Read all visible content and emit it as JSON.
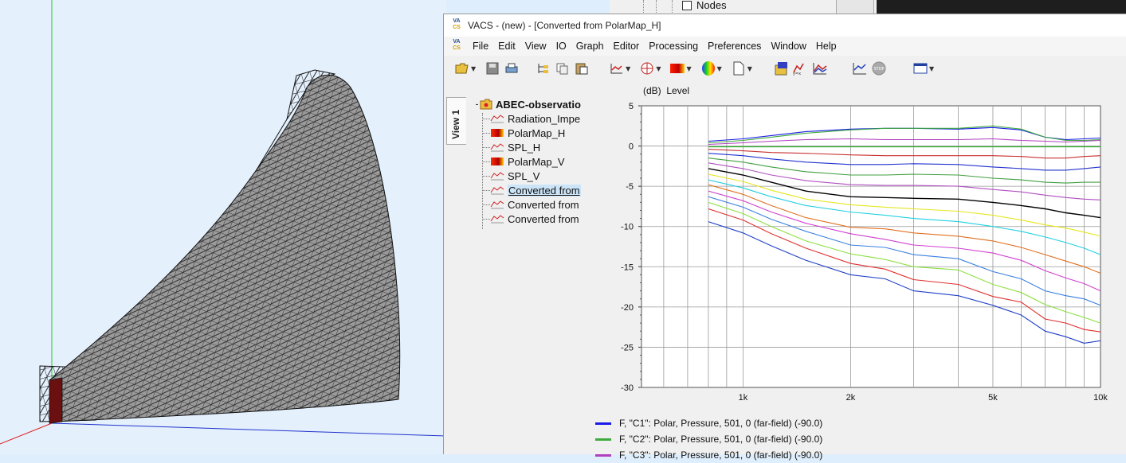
{
  "background_window": {
    "tree_label": "Nodes"
  },
  "window": {
    "title": "VACS - (new) - [Converted from PolarMap_H]",
    "logo_top": "VA",
    "logo_bottom": "CS"
  },
  "menu": [
    "File",
    "Edit",
    "View",
    "IO",
    "Graph",
    "Editor",
    "Processing",
    "Preferences",
    "Window",
    "Help"
  ],
  "toolbar_icons": [
    "open-folder-icon",
    "save-icon",
    "print-icon",
    "tree-view-icon",
    "copy-icon",
    "paste-icon",
    "line-graph-icon",
    "polar-graph-icon",
    "color-map-icon",
    "balloon-icon",
    "new-page-icon",
    "script-icon",
    "formula-icon",
    "compare-graph-icon",
    "add-graph-icon",
    "stop-icon",
    "window-layout-icon"
  ],
  "view_tab": "View 1",
  "tree": {
    "root": "ABEC-observatio",
    "items": [
      {
        "label": "Radiation_Impe",
        "icon": "line-graph-icon"
      },
      {
        "label": "PolarMap_H",
        "icon": "color-map-icon"
      },
      {
        "label": "SPL_H",
        "icon": "line-graph-icon"
      },
      {
        "label": "PolarMap_V",
        "icon": "color-map-icon"
      },
      {
        "label": "SPL_V",
        "icon": "line-graph-icon"
      },
      {
        "label": "Converted from",
        "icon": "line-graph-icon",
        "selected": true
      },
      {
        "label": "Converted from",
        "icon": "line-graph-icon"
      },
      {
        "label": "Converted from",
        "icon": "line-graph-icon"
      }
    ]
  },
  "graph": {
    "unit": "(dB)",
    "label": "Level"
  },
  "chart_data": {
    "type": "line",
    "xscale": "log",
    "xlim": [
      520,
      10000
    ],
    "ylim": [
      -30,
      5
    ],
    "ylabel": "Level",
    "yticks": [
      5,
      0,
      -5,
      -10,
      -15,
      -20,
      -25,
      -30
    ],
    "xtick_labels": [
      {
        "value": 1000,
        "label": "1k"
      },
      {
        "value": 2000,
        "label": "2k"
      },
      {
        "value": 5000,
        "label": "5k"
      },
      {
        "value": 10000,
        "label": "10k"
      }
    ],
    "x": [
      800,
      1000,
      1200,
      1500,
      2000,
      2500,
      3000,
      4000,
      5000,
      6000,
      7000,
      8000,
      9000,
      10000
    ],
    "series": [
      {
        "name": "F, \"C1\": Polar, Pressure, 501, 0 (far-field) (-90.0)",
        "color": "#1a1ae6",
        "values": [
          0.6,
          0.9,
          1.3,
          1.8,
          2.1,
          2.2,
          2.2,
          2.1,
          2.3,
          2.0,
          1.1,
          0.8,
          0.9,
          1.0
        ]
      },
      {
        "name": "F, \"C2\": Polar, Pressure, 501, 0 (far-field) (-90.0)",
        "color": "#3faa3f",
        "values": [
          0.4,
          0.7,
          1.1,
          1.6,
          2.0,
          2.2,
          2.2,
          2.2,
          2.5,
          2.1,
          1.1,
          0.7,
          0.7,
          0.8
        ]
      },
      {
        "name": "F, \"C3\": Polar, Pressure, 501, 0 (far-field) (-90.0)",
        "color": "#b040c0",
        "values": [
          0.2,
          0.4,
          0.6,
          0.8,
          0.9,
          0.8,
          0.8,
          0.8,
          0.9,
          0.7,
          0.6,
          0.5,
          0.6,
          0.7
        ]
      },
      {
        "color": "#2bb52b",
        "values": [
          -0.1,
          -0.1,
          -0.1,
          -0.1,
          -0.1,
          -0.1,
          -0.1,
          -0.1,
          -0.1,
          -0.1,
          -0.1,
          -0.1,
          -0.1,
          -0.1
        ]
      },
      {
        "color": "#c83030",
        "values": [
          -0.4,
          -0.6,
          -0.8,
          -0.9,
          -1.1,
          -1.2,
          -1.2,
          -1.2,
          -1.2,
          -1.3,
          -1.5,
          -1.5,
          -1.3,
          -1.2
        ]
      },
      {
        "color": "#2030d0",
        "values": [
          -0.9,
          -1.2,
          -1.6,
          -2.0,
          -2.3,
          -2.3,
          -2.2,
          -2.3,
          -2.6,
          -2.8,
          -3.0,
          -3.0,
          -2.8,
          -2.6
        ]
      },
      {
        "color": "#40a040",
        "values": [
          -1.5,
          -2.0,
          -2.6,
          -3.2,
          -3.6,
          -3.6,
          -3.5,
          -3.6,
          -4.0,
          -4.2,
          -4.5,
          -4.6,
          -4.5,
          -4.5
        ]
      },
      {
        "color": "#b050c0",
        "values": [
          -2.1,
          -2.8,
          -3.6,
          -4.3,
          -4.8,
          -4.9,
          -4.9,
          -5.0,
          -5.4,
          -5.7,
          -6.1,
          -6.4,
          -6.6,
          -6.7
        ]
      },
      {
        "color": "#000000",
        "values": [
          -2.8,
          -3.6,
          -4.5,
          -5.6,
          -6.3,
          -6.4,
          -6.5,
          -6.6,
          -7.0,
          -7.4,
          -7.8,
          -8.3,
          -8.6,
          -8.9
        ]
      },
      {
        "color": "#e6e620",
        "values": [
          -3.5,
          -4.4,
          -5.5,
          -6.6,
          -7.3,
          -7.6,
          -7.8,
          -8.1,
          -8.6,
          -9.2,
          -9.8,
          -10.2,
          -10.7,
          -11.2
        ]
      },
      {
        "color": "#20d0e0",
        "values": [
          -4.2,
          -5.2,
          -6.3,
          -7.4,
          -8.2,
          -8.6,
          -9.0,
          -9.4,
          -10.0,
          -10.6,
          -11.3,
          -12.0,
          -12.7,
          -13.5
        ]
      },
      {
        "color": "#e07020",
        "values": [
          -4.8,
          -6.0,
          -7.4,
          -8.9,
          -10.1,
          -10.3,
          -10.8,
          -11.2,
          -11.8,
          -12.6,
          -13.5,
          -14.3,
          -15.0,
          -15.8
        ]
      },
      {
        "color": "#d040d0",
        "values": [
          -5.6,
          -6.8,
          -8.2,
          -9.6,
          -10.9,
          -11.6,
          -12.3,
          -12.7,
          -13.3,
          -14.2,
          -15.5,
          -16.4,
          -17.1,
          -18.0
        ]
      },
      {
        "color": "#3a80e0",
        "values": [
          -6.3,
          -7.6,
          -9.1,
          -10.6,
          -12.3,
          -12.6,
          -13.5,
          -14.0,
          -15.6,
          -16.5,
          -18.0,
          -18.6,
          -19.0,
          -19.8
        ]
      },
      {
        "color": "#8ce040",
        "values": [
          -7.0,
          -8.4,
          -10.0,
          -11.8,
          -13.4,
          -14.1,
          -15.0,
          -15.4,
          -17.2,
          -18.2,
          -19.7,
          -20.6,
          -21.3,
          -22.0
        ]
      },
      {
        "color": "#e03030",
        "values": [
          -7.8,
          -9.2,
          -10.9,
          -12.7,
          -14.6,
          -15.3,
          -16.6,
          -17.2,
          -18.7,
          -19.4,
          -21.5,
          -22.0,
          -22.8,
          -23.1
        ]
      },
      {
        "color": "#2040c8",
        "values": [
          -9.4,
          -10.8,
          -12.4,
          -14.2,
          -16.0,
          -16.5,
          -18.0,
          -18.6,
          -19.8,
          -21.0,
          -23.0,
          -23.7,
          -24.5,
          -24.2
        ]
      }
    ]
  }
}
